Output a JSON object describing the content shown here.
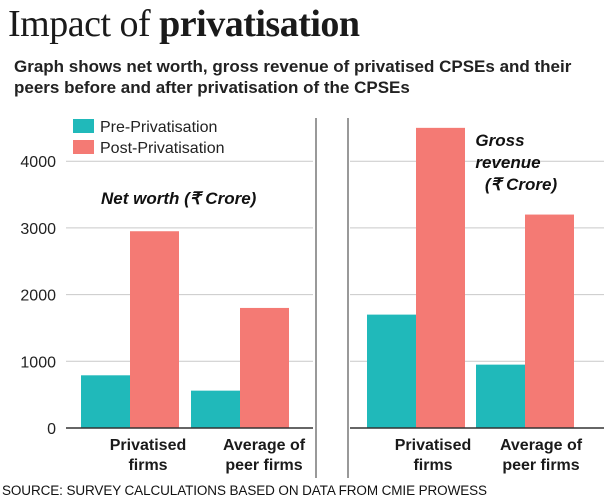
{
  "header": {
    "title_plain": "Impact of",
    "title_bold": "privatisation",
    "subtitle": "Graph shows net worth, gross revenue of privatised CPSEs and their peers before and after privatisation of the CPSEs"
  },
  "colors": {
    "pre": "#20b9ba",
    "post": "#f47a74",
    "grid": "#c9c9c9"
  },
  "legend": [
    "Pre-Privatisation",
    "Post-Privatisation"
  ],
  "source": "SOURCE: SURVEY CALCULATIONS BASED ON DATA FROM CMIE PROWESS",
  "chart_data": [
    {
      "type": "bar",
      "title": "Net worth (₹ Crore)",
      "categories": [
        "Privatised firms",
        "Average of peer firms"
      ],
      "series": [
        {
          "name": "Pre-Privatisation",
          "values": [
            790,
            560
          ]
        },
        {
          "name": "Post-Privatisation",
          "values": [
            2950,
            1800
          ]
        }
      ],
      "ylim": [
        0,
        4500
      ],
      "yticks": [
        0,
        1000,
        2000,
        3000,
        4000
      ],
      "legend": "top-left"
    },
    {
      "type": "bar",
      "title": "Gross revenue (₹ Crore)",
      "categories": [
        "Privatised firms",
        "Average of peer firms"
      ],
      "series": [
        {
          "name": "Pre-Privatisation",
          "values": [
            1700,
            950
          ]
        },
        {
          "name": "Post-Privatisation",
          "values": [
            4500,
            3200
          ]
        }
      ],
      "ylim": [
        0,
        4500
      ],
      "yticks": [
        0,
        1000,
        2000,
        3000,
        4000
      ]
    }
  ]
}
